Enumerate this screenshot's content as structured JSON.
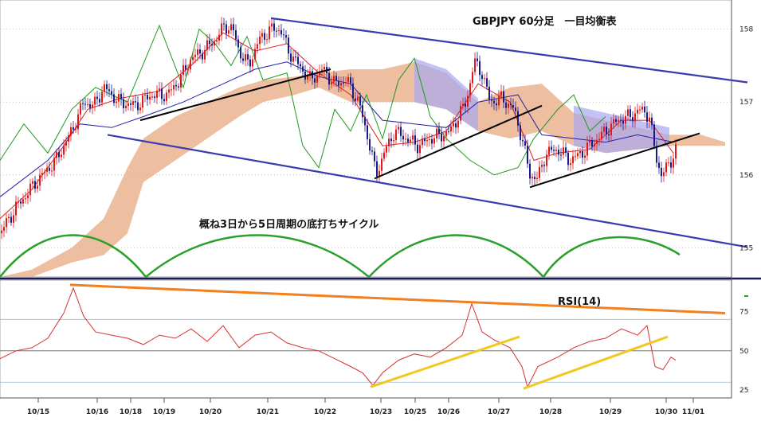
{
  "chart_data": [
    {
      "type": "line",
      "title": "GBPJPY 60分足　一目均衡表",
      "annotation": "概ね3日から5日周期の底打ちサイクル",
      "y_ticks": [
        158,
        157,
        156,
        155
      ],
      "ylim": [
        154.6,
        158.4
      ],
      "x_dates": [
        "10/15",
        "10/16",
        "10/18",
        "10/19",
        "10/20",
        "10/21",
        "10/22",
        "10/23",
        "10/25",
        "10/26",
        "10/27",
        "10/28",
        "10/29",
        "10/30",
        "11/01"
      ],
      "price_path": [
        [
          0,
          155.2
        ],
        [
          20,
          155.55
        ],
        [
          45,
          155.9
        ],
        [
          70,
          156.2
        ],
        [
          90,
          156.6
        ],
        [
          105,
          157.0
        ],
        [
          118,
          156.95
        ],
        [
          130,
          157.2
        ],
        [
          150,
          157.0
        ],
        [
          170,
          156.95
        ],
        [
          190,
          157.1
        ],
        [
          210,
          157.1
        ],
        [
          225,
          157.3
        ],
        [
          240,
          157.6
        ],
        [
          255,
          157.7
        ],
        [
          270,
          157.85
        ],
        [
          282,
          158.05
        ],
        [
          292,
          158.0
        ],
        [
          300,
          157.7
        ],
        [
          312,
          157.5
        ],
        [
          325,
          157.85
        ],
        [
          340,
          158.0
        ],
        [
          352,
          158.0
        ],
        [
          362,
          157.7
        ],
        [
          375,
          157.5
        ],
        [
          390,
          157.3
        ],
        [
          405,
          157.45
        ],
        [
          420,
          157.25
        ],
        [
          435,
          157.3
        ],
        [
          450,
          157.0
        ],
        [
          462,
          156.5
        ],
        [
          472,
          156.0
        ],
        [
          482,
          156.3
        ],
        [
          495,
          156.6
        ],
        [
          510,
          156.5
        ],
        [
          525,
          156.4
        ],
        [
          540,
          156.5
        ],
        [
          555,
          156.55
        ],
        [
          565,
          156.6
        ],
        [
          575,
          156.8
        ],
        [
          585,
          157.0
        ],
        [
          595,
          157.55
        ],
        [
          605,
          157.4
        ],
        [
          615,
          157.0
        ],
        [
          630,
          157.05
        ],
        [
          645,
          156.9
        ],
        [
          655,
          156.5
        ],
        [
          665,
          156.0
        ],
        [
          675,
          155.95
        ],
        [
          685,
          156.3
        ],
        [
          700,
          156.35
        ],
        [
          715,
          156.2
        ],
        [
          730,
          156.3
        ],
        [
          745,
          156.45
        ],
        [
          760,
          156.6
        ],
        [
          775,
          156.75
        ],
        [
          790,
          156.8
        ],
        [
          805,
          156.9
        ],
        [
          815,
          156.8
        ],
        [
          822,
          156.3
        ],
        [
          830,
          156.0
        ],
        [
          840,
          156.15
        ],
        [
          848,
          156.35
        ]
      ],
      "fast_line": [
        [
          0,
          155.4
        ],
        [
          40,
          155.8
        ],
        [
          80,
          156.4
        ],
        [
          110,
          156.9
        ],
        [
          150,
          157.05
        ],
        [
          200,
          157.15
        ],
        [
          240,
          157.5
        ],
        [
          280,
          157.95
        ],
        [
          320,
          157.7
        ],
        [
          360,
          157.8
        ],
        [
          400,
          157.4
        ],
        [
          440,
          157.1
        ],
        [
          480,
          156.4
        ],
        [
          520,
          156.45
        ],
        [
          560,
          156.6
        ],
        [
          600,
          157.25
        ],
        [
          640,
          157.0
        ],
        [
          670,
          156.2
        ],
        [
          700,
          156.3
        ],
        [
          740,
          156.35
        ],
        [
          780,
          156.75
        ],
        [
          815,
          156.75
        ],
        [
          845,
          156.3
        ]
      ],
      "slow_line": [
        [
          0,
          155.7
        ],
        [
          60,
          156.2
        ],
        [
          100,
          156.7
        ],
        [
          140,
          156.65
        ],
        [
          180,
          156.8
        ],
        [
          230,
          157.0
        ],
        [
          280,
          157.25
        ],
        [
          320,
          157.45
        ],
        [
          360,
          157.55
        ],
        [
          400,
          157.35
        ],
        [
          440,
          157.25
        ],
        [
          480,
          156.75
        ],
        [
          520,
          156.7
        ],
        [
          560,
          156.65
        ],
        [
          600,
          157.0
        ],
        [
          650,
          157.1
        ],
        [
          680,
          156.55
        ],
        [
          720,
          156.5
        ],
        [
          760,
          156.45
        ],
        [
          800,
          156.55
        ],
        [
          845,
          156.45
        ]
      ],
      "lagging_line": [
        [
          0,
          156.2
        ],
        [
          30,
          156.7
        ],
        [
          60,
          156.3
        ],
        [
          90,
          156.9
        ],
        [
          120,
          157.2
        ],
        [
          160,
          157.0
        ],
        [
          200,
          158.05
        ],
        [
          230,
          157.2
        ],
        [
          250,
          158.0
        ],
        [
          270,
          157.8
        ],
        [
          290,
          157.5
        ],
        [
          310,
          157.9
        ],
        [
          330,
          157.3
        ],
        [
          360,
          157.4
        ],
        [
          380,
          156.4
        ],
        [
          400,
          156.1
        ],
        [
          420,
          156.9
        ],
        [
          440,
          156.6
        ],
        [
          460,
          157.1
        ],
        [
          480,
          156.5
        ],
        [
          500,
          157.3
        ],
        [
          520,
          157.6
        ],
        [
          540,
          156.8
        ],
        [
          560,
          156.5
        ],
        [
          590,
          156.2
        ],
        [
          620,
          156.0
        ],
        [
          650,
          156.1
        ],
        [
          670,
          156.5
        ],
        [
          700,
          156.9
        ],
        [
          720,
          157.1
        ],
        [
          740,
          156.6
        ],
        [
          760,
          156.8
        ]
      ],
      "cloud_top": [
        [
          0,
          154.6
        ],
        [
          40,
          154.7
        ],
        [
          90,
          155.0
        ],
        [
          130,
          155.4
        ],
        [
          160,
          156.1
        ],
        [
          180,
          156.5
        ],
        [
          220,
          156.8
        ],
        [
          260,
          157.0
        ],
        [
          300,
          157.2
        ],
        [
          330,
          157.3
        ],
        [
          370,
          157.35
        ],
        [
          400,
          157.4
        ],
        [
          440,
          157.45
        ],
        [
          480,
          157.45
        ],
        [
          520,
          157.55
        ],
        [
          560,
          157.4
        ],
        [
          600,
          157.0
        ],
        [
          640,
          157.2
        ],
        [
          680,
          157.25
        ],
        [
          720,
          156.85
        ],
        [
          760,
          156.75
        ],
        [
          800,
          156.65
        ],
        [
          840,
          156.55
        ],
        [
          880,
          156.55
        ],
        [
          910,
          156.45
        ]
      ],
      "cloud_bottom": [
        [
          0,
          154.6
        ],
        [
          40,
          154.6
        ],
        [
          90,
          154.8
        ],
        [
          130,
          154.9
        ],
        [
          160,
          155.2
        ],
        [
          180,
          155.9
        ],
        [
          220,
          156.2
        ],
        [
          260,
          156.5
        ],
        [
          300,
          156.8
        ],
        [
          330,
          157.0
        ],
        [
          370,
          157.1
        ],
        [
          400,
          157.2
        ],
        [
          440,
          157.0
        ],
        [
          480,
          157.0
        ],
        [
          520,
          157.0
        ],
        [
          560,
          156.9
        ],
        [
          600,
          156.6
        ],
        [
          640,
          156.5
        ],
        [
          680,
          156.6
        ],
        [
          720,
          156.4
        ],
        [
          760,
          156.3
        ],
        [
          800,
          156.35
        ],
        [
          840,
          156.4
        ],
        [
          880,
          156.4
        ],
        [
          910,
          156.4
        ]
      ],
      "channel_upper": [
        [
          340,
          158.15
        ],
        [
          938,
          157.27
        ]
      ],
      "channel_lower": [
        [
          135,
          156.55
        ],
        [
          938,
          155.01
        ]
      ],
      "trendlines_black": [
        [
          [
            176,
            156.75
          ],
          [
            415,
            157.45
          ]
        ],
        [
          [
            470,
            155.95
          ],
          [
            680,
            156.95
          ]
        ],
        [
          [
            665,
            155.83
          ],
          [
            878,
            156.57
          ]
        ]
      ],
      "red_marker": [
        [
          276,
          158.47
        ],
        [
          350,
          158.47
        ]
      ],
      "cycle_arcs": [
        [
          0,
          183
        ],
        [
          183,
          463
        ],
        [
          463,
          682
        ],
        [
          682,
          853
        ]
      ]
    },
    {
      "type": "line",
      "title": "RSI(14)",
      "y_ticks": [
        75,
        50,
        25
      ],
      "ylim": [
        20,
        95
      ],
      "reference_levels": [
        70,
        50,
        30
      ],
      "rsi_path": [
        [
          0,
          45
        ],
        [
          20,
          50
        ],
        [
          40,
          52
        ],
        [
          60,
          58
        ],
        [
          80,
          74
        ],
        [
          92,
          90
        ],
        [
          105,
          72
        ],
        [
          120,
          62
        ],
        [
          140,
          60
        ],
        [
          160,
          58
        ],
        [
          180,
          54
        ],
        [
          200,
          60
        ],
        [
          220,
          58
        ],
        [
          240,
          64
        ],
        [
          260,
          56
        ],
        [
          280,
          66
        ],
        [
          300,
          52
        ],
        [
          320,
          60
        ],
        [
          340,
          62
        ],
        [
          360,
          55
        ],
        [
          380,
          52
        ],
        [
          400,
          50
        ],
        [
          420,
          45
        ],
        [
          440,
          40
        ],
        [
          455,
          36
        ],
        [
          468,
          28
        ],
        [
          480,
          36
        ],
        [
          500,
          44
        ],
        [
          520,
          48
        ],
        [
          540,
          46
        ],
        [
          560,
          52
        ],
        [
          580,
          60
        ],
        [
          592,
          80
        ],
        [
          605,
          62
        ],
        [
          620,
          57
        ],
        [
          640,
          52
        ],
        [
          655,
          40
        ],
        [
          662,
          27
        ],
        [
          675,
          40
        ],
        [
          700,
          46
        ],
        [
          720,
          52
        ],
        [
          740,
          56
        ],
        [
          760,
          58
        ],
        [
          780,
          64
        ],
        [
          800,
          60
        ],
        [
          812,
          66
        ],
        [
          822,
          40
        ],
        [
          832,
          38
        ],
        [
          842,
          46
        ],
        [
          848,
          44
        ]
      ],
      "orange_line": [
        [
          88,
          92
        ],
        [
          910,
          74
        ]
      ],
      "yellow_lines": [
        [
          [
            465,
            27
          ],
          [
            652,
            59
          ]
        ],
        [
          [
            657,
            26
          ],
          [
            838,
            59
          ]
        ]
      ]
    }
  ]
}
